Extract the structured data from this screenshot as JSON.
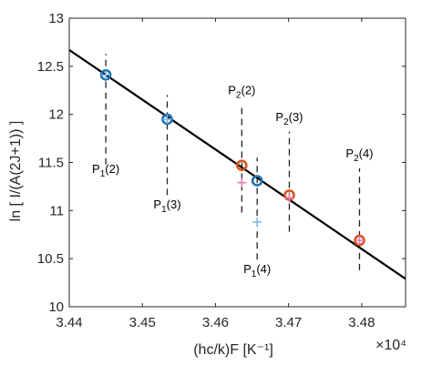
{
  "chart_data": {
    "type": "scatter",
    "xlabel": "(hc/k)F   [K⁻¹]",
    "ylabel": "ln [ I/(A(2J+1)) ]",
    "exponent_label": "×10⁴",
    "xlim": [
      34400,
      34860
    ],
    "ylim": [
      10,
      13
    ],
    "xticks": [
      34400,
      34500,
      34600,
      34700,
      34800
    ],
    "xtick_labels": [
      "3.44",
      "3.45",
      "3.46",
      "3.47",
      "3.48"
    ],
    "yticks": [
      10,
      10.5,
      11,
      11.5,
      12,
      12.5,
      13
    ],
    "ytick_labels": [
      "10",
      "10.5",
      "11",
      "11.5",
      "12",
      "12.5",
      "13"
    ],
    "grid": false,
    "fit_line": {
      "color": "#000000",
      "points": [
        [
          34400,
          12.67
        ],
        [
          34860,
          10.29
        ]
      ]
    },
    "series": [
      {
        "color": "#1f6fb4",
        "marker": "circle",
        "points": [
          [
            34450,
            12.41
          ],
          [
            34534,
            11.95
          ],
          [
            34657,
            11.31
          ]
        ]
      },
      {
        "color": "#d9541a",
        "marker": "circle",
        "points": [
          [
            34636,
            11.47
          ],
          [
            34701,
            11.16
          ],
          [
            34797,
            10.69
          ]
        ]
      },
      {
        "color": "#7fb8e8",
        "marker": "plus",
        "points": [
          [
            34450,
            12.41
          ],
          [
            34534,
            11.95
          ],
          [
            34657,
            10.88
          ]
        ]
      },
      {
        "color": "#e87ab8",
        "marker": "plus",
        "points": [
          [
            34636,
            11.29
          ],
          [
            34701,
            11.13
          ],
          [
            34797,
            10.69
          ]
        ]
      }
    ],
    "annotations": [
      {
        "main": "P",
        "sub": "1",
        "rest": "(2)",
        "x": 34450,
        "y": 11.39,
        "line_y": [
          11.48,
          12.63
        ]
      },
      {
        "main": "P",
        "sub": "1",
        "rest": "(3)",
        "x": 34534,
        "y": 11.02,
        "line_y": [
          11.16,
          12.2
        ]
      },
      {
        "main": "P",
        "sub": "2",
        "rest": "(2)",
        "x": 34636,
        "y": 12.21,
        "line_y": [
          10.98,
          12.08
        ]
      },
      {
        "main": "P",
        "sub": "2",
        "rest": "(3)",
        "x": 34701,
        "y": 11.93,
        "line_y": [
          10.78,
          11.82
        ]
      },
      {
        "main": "P",
        "sub": "2",
        "rest": "(4)",
        "x": 34797,
        "y": 11.55,
        "line_y": [
          10.38,
          11.44
        ]
      },
      {
        "main": "P",
        "sub": "1",
        "rest": "(4)",
        "x": 34657,
        "y": 10.35,
        "line_y": [
          10.49,
          11.55
        ]
      }
    ]
  }
}
